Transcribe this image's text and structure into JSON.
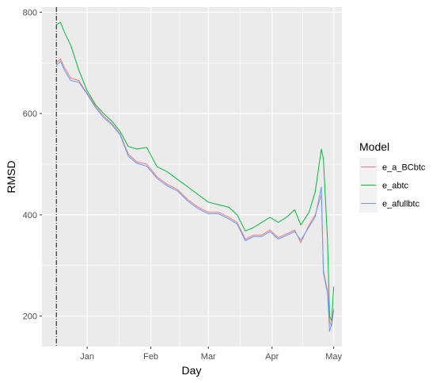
{
  "chart_data": {
    "type": "line",
    "title": "",
    "xlabel": "Day",
    "ylabel": "RMSD",
    "x_ticks": [
      "Jan",
      "Feb",
      "Mar",
      "Apr",
      "May"
    ],
    "x_tick_values": [
      "2021-01-01",
      "2021-02-01",
      "2021-03-01",
      "2021-04-01",
      "2021-05-01"
    ],
    "xlim": [
      "2020-12-10",
      "2021-05-05"
    ],
    "y_ticks": [
      200,
      400,
      600,
      800
    ],
    "ylim": [
      140,
      810
    ],
    "grid": true,
    "background": "#ebebeb",
    "vline": {
      "x": "2020-12-17",
      "style": "dashdot",
      "color": "#000000"
    },
    "legend": {
      "title": "Model",
      "position": "right"
    },
    "series": [
      {
        "name": "e_a_BCbtc",
        "color": "#f8766d",
        "points": [
          [
            "2020-12-17",
            700
          ],
          [
            "2020-12-19",
            708
          ],
          [
            "2020-12-21",
            690
          ],
          [
            "2020-12-24",
            670
          ],
          [
            "2020-12-28",
            665
          ],
          [
            "2021-01-01",
            640
          ],
          [
            "2021-01-05",
            615
          ],
          [
            "2021-01-09",
            595
          ],
          [
            "2021-01-13",
            580
          ],
          [
            "2021-01-17",
            560
          ],
          [
            "2021-01-21",
            520
          ],
          [
            "2021-01-25",
            505
          ],
          [
            "2021-01-30",
            500
          ],
          [
            "2021-02-04",
            475
          ],
          [
            "2021-02-09",
            460
          ],
          [
            "2021-02-14",
            450
          ],
          [
            "2021-02-19",
            430
          ],
          [
            "2021-02-24",
            415
          ],
          [
            "2021-03-01",
            405
          ],
          [
            "2021-03-06",
            405
          ],
          [
            "2021-03-11",
            395
          ],
          [
            "2021-03-15",
            385
          ],
          [
            "2021-03-19",
            352
          ],
          [
            "2021-03-23",
            360
          ],
          [
            "2021-03-27",
            360
          ],
          [
            "2021-03-31",
            370
          ],
          [
            "2021-04-04",
            355
          ],
          [
            "2021-04-08",
            362
          ],
          [
            "2021-04-12",
            370
          ],
          [
            "2021-04-15",
            345
          ],
          [
            "2021-04-19",
            380
          ],
          [
            "2021-04-22",
            400
          ],
          [
            "2021-04-25",
            440
          ],
          [
            "2021-04-26",
            290
          ],
          [
            "2021-04-28",
            250
          ],
          [
            "2021-04-29",
            190
          ],
          [
            "2021-04-30",
            180
          ],
          [
            "2021-05-01",
            215
          ]
        ]
      },
      {
        "name": "e_abtc",
        "color": "#00ba38",
        "points": [
          [
            "2020-12-17",
            775
          ],
          [
            "2020-12-19",
            780
          ],
          [
            "2020-12-21",
            760
          ],
          [
            "2020-12-24",
            735
          ],
          [
            "2020-12-28",
            685
          ],
          [
            "2021-01-01",
            645
          ],
          [
            "2021-01-05",
            618
          ],
          [
            "2021-01-09",
            600
          ],
          [
            "2021-01-13",
            585
          ],
          [
            "2021-01-17",
            565
          ],
          [
            "2021-01-21",
            535
          ],
          [
            "2021-01-25",
            530
          ],
          [
            "2021-01-30",
            533
          ],
          [
            "2021-02-04",
            495
          ],
          [
            "2021-02-09",
            485
          ],
          [
            "2021-02-14",
            470
          ],
          [
            "2021-02-19",
            455
          ],
          [
            "2021-02-24",
            440
          ],
          [
            "2021-03-01",
            425
          ],
          [
            "2021-03-06",
            420
          ],
          [
            "2021-03-11",
            415
          ],
          [
            "2021-03-15",
            400
          ],
          [
            "2021-03-19",
            368
          ],
          [
            "2021-03-23",
            375
          ],
          [
            "2021-03-27",
            385
          ],
          [
            "2021-03-31",
            395
          ],
          [
            "2021-04-04",
            385
          ],
          [
            "2021-04-08",
            395
          ],
          [
            "2021-04-12",
            410
          ],
          [
            "2021-04-15",
            380
          ],
          [
            "2021-04-19",
            405
          ],
          [
            "2021-04-22",
            445
          ],
          [
            "2021-04-25",
            530
          ],
          [
            "2021-04-26",
            510
          ],
          [
            "2021-04-28",
            350
          ],
          [
            "2021-04-29",
            200
          ],
          [
            "2021-04-30",
            190
          ],
          [
            "2021-05-01",
            258
          ]
        ]
      },
      {
        "name": "e_afullbtc",
        "color": "#619cff",
        "points": [
          [
            "2020-12-17",
            695
          ],
          [
            "2020-12-19",
            703
          ],
          [
            "2020-12-21",
            685
          ],
          [
            "2020-12-24",
            665
          ],
          [
            "2020-12-28",
            662
          ],
          [
            "2021-01-01",
            638
          ],
          [
            "2021-01-05",
            612
          ],
          [
            "2021-01-09",
            592
          ],
          [
            "2021-01-13",
            578
          ],
          [
            "2021-01-17",
            558
          ],
          [
            "2021-01-21",
            516
          ],
          [
            "2021-01-25",
            502
          ],
          [
            "2021-01-30",
            496
          ],
          [
            "2021-02-04",
            472
          ],
          [
            "2021-02-09",
            457
          ],
          [
            "2021-02-14",
            447
          ],
          [
            "2021-02-19",
            427
          ],
          [
            "2021-02-24",
            412
          ],
          [
            "2021-03-01",
            402
          ],
          [
            "2021-03-06",
            402
          ],
          [
            "2021-03-11",
            392
          ],
          [
            "2021-03-15",
            382
          ],
          [
            "2021-03-19",
            349
          ],
          [
            "2021-03-23",
            357
          ],
          [
            "2021-03-27",
            357
          ],
          [
            "2021-03-31",
            367
          ],
          [
            "2021-04-04",
            352
          ],
          [
            "2021-04-08",
            359
          ],
          [
            "2021-04-12",
            367
          ],
          [
            "2021-04-15",
            350
          ],
          [
            "2021-04-19",
            376
          ],
          [
            "2021-04-22",
            396
          ],
          [
            "2021-04-25",
            455
          ],
          [
            "2021-04-26",
            285
          ],
          [
            "2021-04-28",
            245
          ],
          [
            "2021-04-29",
            170
          ],
          [
            "2021-04-30",
            185
          ],
          [
            "2021-05-01",
            210
          ]
        ]
      }
    ]
  }
}
